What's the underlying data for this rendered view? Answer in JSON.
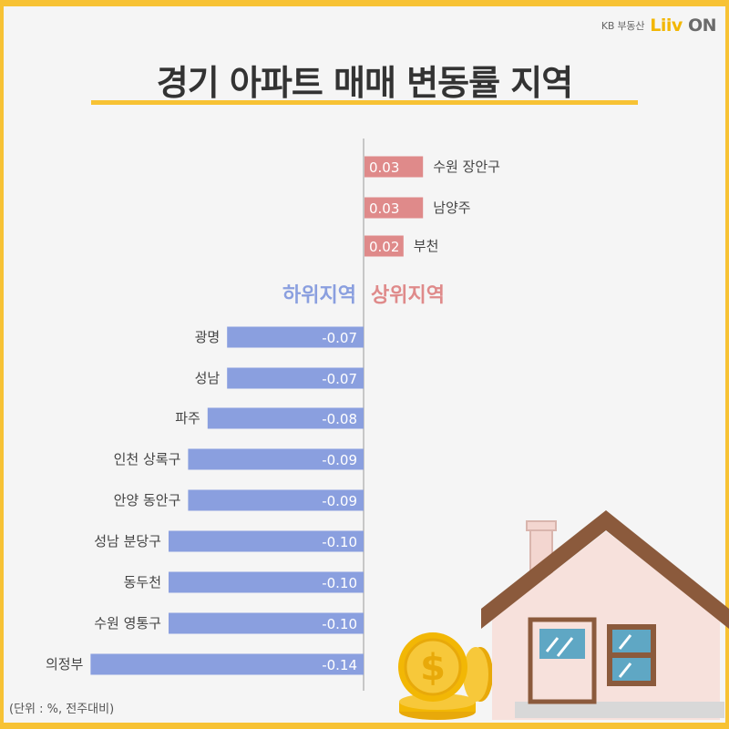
{
  "brand": {
    "kb": "KB 부동산",
    "logo_main": "Liiv",
    "logo_on": "ON"
  },
  "title": "경기 아파트 매매 변동률 지역",
  "note": "(단위 : %, 전주대비)",
  "colors": {
    "up": "#df8a8a",
    "down": "#8a9fdf",
    "accent": "#f7c234",
    "axis": "#999999"
  },
  "chart_data": [
    {
      "type": "bar",
      "orientation": "horizontal",
      "group": "상위지역",
      "categories": [
        "수원 장안구",
        "남양주",
        "부천"
      ],
      "values": [
        0.03,
        0.03,
        0.02
      ],
      "value_labels": [
        "0.03",
        "0.03",
        "0.02"
      ]
    },
    {
      "type": "bar",
      "orientation": "horizontal",
      "group": "하위지역",
      "categories": [
        "광명",
        "성남",
        "파주",
        "인천 상록구",
        "안양 동안구",
        "성남 분당구",
        "동두천",
        "수원 영통구",
        "의정부"
      ],
      "values": [
        -0.07,
        -0.07,
        -0.08,
        -0.09,
        -0.09,
        -0.1,
        -0.1,
        -0.1,
        -0.14
      ],
      "value_labels": [
        "-0.07",
        "-0.07",
        "-0.08",
        "-0.09",
        "-0.09",
        "-0.10",
        "-0.10",
        "-0.10",
        "-0.14"
      ]
    }
  ],
  "icons": [
    "house-icon",
    "coin-stack-icon"
  ]
}
